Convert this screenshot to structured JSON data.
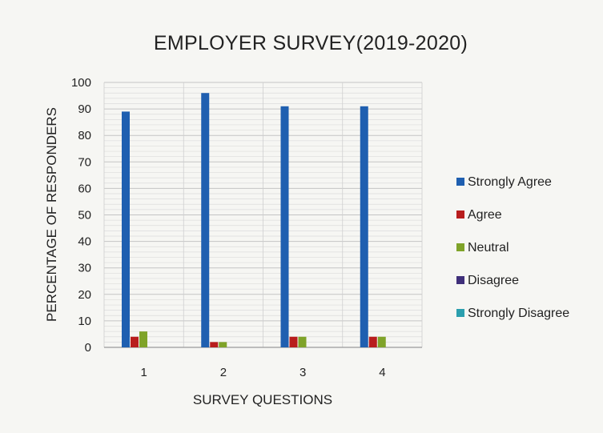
{
  "chart_data": {
    "type": "bar",
    "title": "EMPLOYER SURVEY(2019-2020)",
    "xlabel": "SURVEY QUESTIONS",
    "ylabel": "PERCENTAGE OF RESPONDERS",
    "categories": [
      "1",
      "2",
      "3",
      "4"
    ],
    "ylim": [
      0,
      100
    ],
    "yticks": [
      0,
      10,
      20,
      30,
      40,
      50,
      60,
      70,
      80,
      90,
      100
    ],
    "grid": true,
    "legend_position": "right",
    "series": [
      {
        "name": "Strongly Agree",
        "color": "#1f5fb0",
        "values": [
          89,
          96,
          91,
          91
        ]
      },
      {
        "name": "Agree",
        "color": "#b81d1d",
        "values": [
          4,
          2,
          4,
          4
        ]
      },
      {
        "name": "Neutral",
        "color": "#7fa329",
        "values": [
          6,
          2,
          4,
          4
        ]
      },
      {
        "name": "Disagree",
        "color": "#3f2f7a",
        "values": [
          0,
          0,
          0,
          0
        ]
      },
      {
        "name": "Strongly Disagree",
        "color": "#2b9fae",
        "values": [
          0,
          0,
          0,
          0
        ]
      }
    ]
  }
}
